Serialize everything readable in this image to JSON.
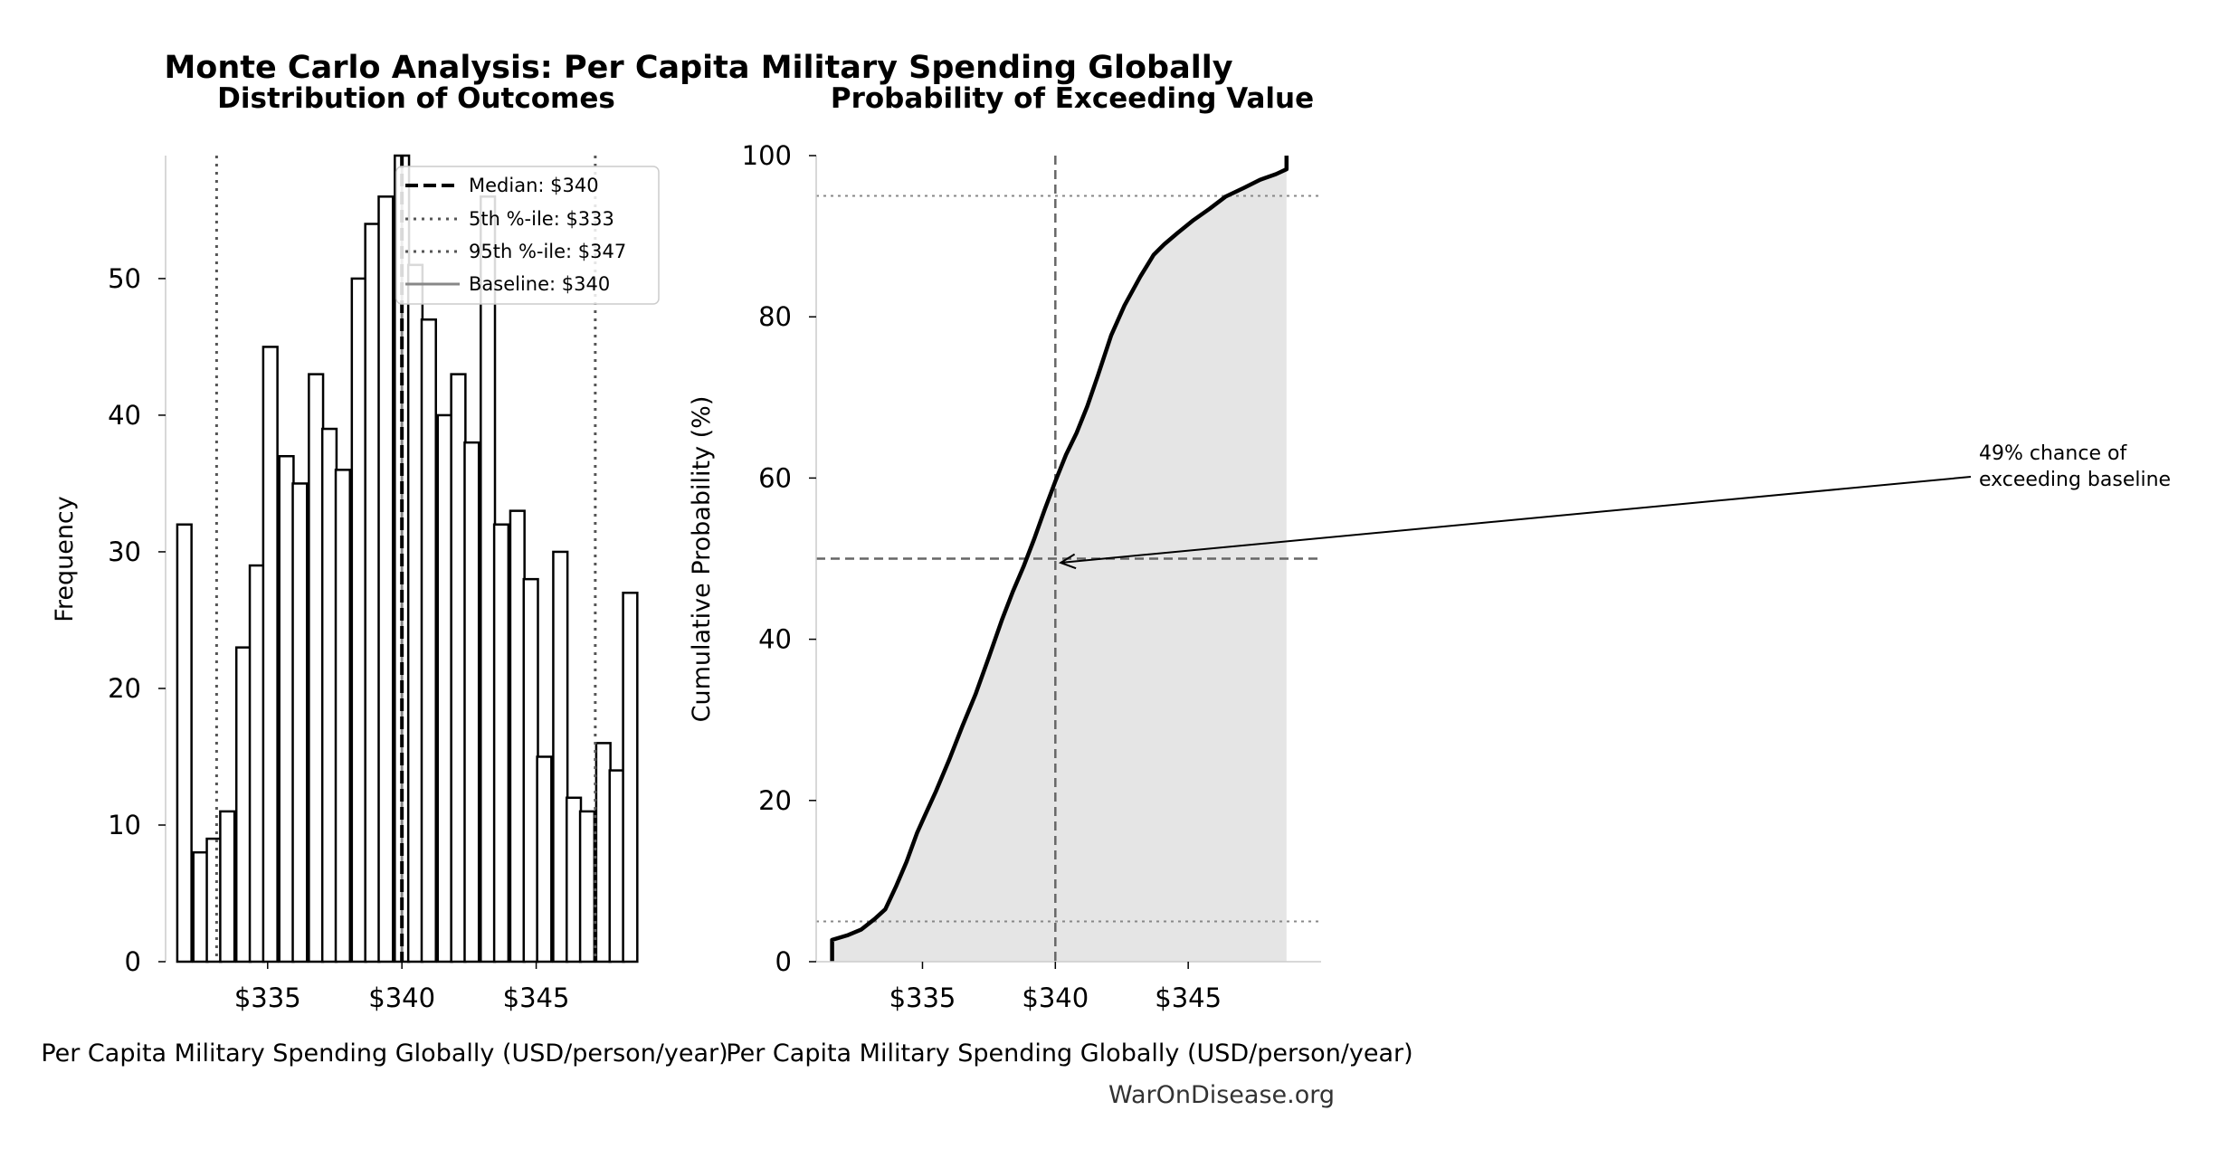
{
  "figure": {
    "suptitle": "Monte Carlo Analysis: Per Capita Military Spending Globally",
    "watermark": "WarOnDisease.org"
  },
  "colors": {
    "bar_face": "#ffffff",
    "bar_edge": "#000000",
    "line": "#000000",
    "fill": "#e5e5e5",
    "reference": "#666666"
  },
  "chart_data": [
    {
      "type": "bar",
      "title": "Distribution of Outcomes",
      "xlabel": "Per Capita Military Spending Globally (USD/person/year)",
      "ylabel": "Frequency",
      "bin_width": 0.53,
      "bin_centers": [
        331.9,
        332.5,
        333.0,
        333.5,
        334.1,
        334.6,
        335.1,
        335.7,
        336.2,
        336.8,
        337.3,
        337.8,
        338.4,
        338.9,
        339.4,
        340.0,
        340.5,
        341.0,
        341.6,
        342.1,
        342.6,
        343.2,
        343.7,
        344.3,
        344.8,
        345.3,
        345.9,
        346.4,
        346.9,
        347.5,
        348.0,
        348.5
      ],
      "values": [
        32,
        8,
        9,
        11,
        23,
        29,
        45,
        37,
        35,
        43,
        39,
        36,
        50,
        54,
        56,
        59,
        51,
        47,
        40,
        43,
        38,
        56,
        32,
        33,
        28,
        15,
        30,
        12,
        11,
        16,
        14,
        27
      ],
      "xlim": [
        331.2,
        349.9
      ],
      "ylim": [
        0,
        59
      ],
      "xticks": [
        335,
        340,
        345
      ],
      "xtick_labels": [
        "$335",
        "$340",
        "$345"
      ],
      "yticks": [
        0,
        10,
        20,
        30,
        40,
        50
      ],
      "yticks_labels": [
        "0",
        "10",
        "20",
        "30",
        "40",
        "50"
      ],
      "reference_lines": {
        "median": 340,
        "p5": 333.1,
        "p95": 347.2,
        "baseline": 340
      },
      "legend": {
        "position": "top-right",
        "entries": [
          "Median: $340",
          "5th %-ile: $333",
          "95th %-ile: $347",
          "Baseline: $340"
        ]
      }
    },
    {
      "type": "area",
      "title": "Probability of Exceeding Value",
      "xlabel": "Per Capita Military Spending Globally (USD/person/year)",
      "ylabel": "Cumulative Probability (%)",
      "x": [
        331.6,
        331.6,
        332.2,
        332.7,
        333.2,
        333.6,
        334.0,
        334.4,
        334.8,
        335.1,
        335.5,
        336.0,
        336.5,
        337.0,
        337.5,
        338.0,
        338.4,
        338.8,
        339.2,
        339.6,
        340.0,
        340.4,
        340.8,
        341.2,
        341.6,
        342.1,
        342.6,
        343.2,
        343.7,
        344.1,
        344.6,
        345.2,
        345.8,
        346.4,
        347.1,
        347.7,
        348.3,
        348.7,
        348.7
      ],
      "y": [
        0.0,
        2.7,
        3.3,
        4.0,
        5.3,
        6.5,
        9.3,
        12.4,
        16.0,
        18.2,
        21.1,
        25.0,
        29.2,
        33.2,
        37.8,
        42.5,
        45.9,
        49.0,
        52.4,
        56.1,
        59.6,
        62.9,
        65.6,
        68.9,
        72.7,
        77.7,
        81.4,
        85.0,
        87.7,
        89.0,
        90.4,
        92.0,
        93.4,
        94.9,
        96.0,
        97.0,
        97.7,
        98.3,
        100.0
      ],
      "xlim": [
        331.0,
        350.0
      ],
      "ylim": [
        0,
        100
      ],
      "xticks": [
        335,
        340,
        345
      ],
      "xtick_labels": [
        "$335",
        "$340",
        "$345"
      ],
      "yticks": [
        0,
        20,
        40,
        60,
        80,
        100
      ],
      "ytick_labels": [
        "0",
        "20",
        "40",
        "60",
        "80",
        "100"
      ],
      "reference_lines": {
        "baseline_x": 340,
        "y50": 50,
        "y5": 5,
        "y95": 95
      },
      "annotation": {
        "lines": [
          "49% chance of",
          "exceeding baseline"
        ],
        "target": {
          "x": 340.2,
          "y": 49.5
        }
      }
    }
  ]
}
